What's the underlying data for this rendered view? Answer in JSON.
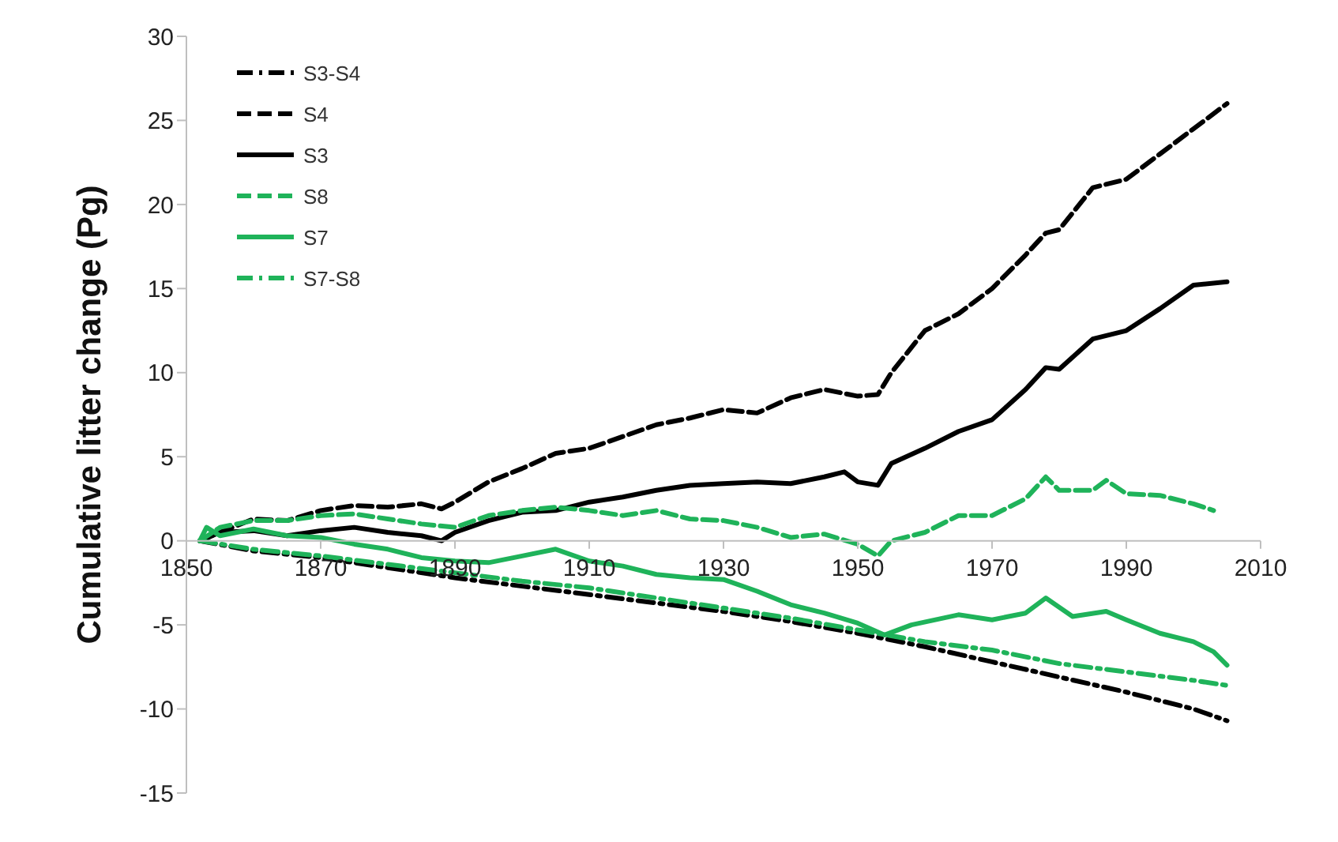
{
  "chart_data": {
    "type": "line",
    "ylabel": "Cumulative litter change (Pg)",
    "xlim": [
      1850,
      2010
    ],
    "xticks": [
      1850,
      1870,
      1890,
      1910,
      1930,
      1950,
      1970,
      1990,
      2010
    ],
    "ylim": [
      -15,
      30
    ],
    "yticks": [
      -15,
      -10,
      -5,
      0,
      5,
      10,
      15,
      20,
      25,
      30
    ],
    "grid": false,
    "legend": "top left",
    "marker": "none",
    "series": [
      {
        "name": "S3-S4",
        "color": "#000000",
        "line_style": "dashdot",
        "x": [
          1852,
          1860,
          1870,
          1880,
          1890,
          1900,
          1910,
          1920,
          1930,
          1940,
          1950,
          1960,
          1970,
          1980,
          1990,
          2000,
          2005
        ],
        "values": [
          0,
          -0.6,
          -1.0,
          -1.6,
          -2.2,
          -2.7,
          -3.2,
          -3.7,
          -4.2,
          -4.8,
          -5.5,
          -6.3,
          -7.2,
          -8.1,
          -9.0,
          -10.0,
          -10.7
        ]
      },
      {
        "name": "S4",
        "color": "#000000",
        "line_style": "dashed",
        "x": [
          1852,
          1855,
          1860,
          1865,
          1870,
          1875,
          1880,
          1885,
          1888,
          1890,
          1895,
          1900,
          1905,
          1910,
          1915,
          1920,
          1925,
          1930,
          1935,
          1940,
          1945,
          1950,
          1953,
          1955,
          1960,
          1965,
          1970,
          1975,
          1978,
          1980,
          1985,
          1990,
          1995,
          2000,
          2005
        ],
        "values": [
          0,
          0.5,
          1.3,
          1.2,
          1.8,
          2.1,
          2.0,
          2.2,
          1.9,
          2.3,
          3.5,
          4.3,
          5.2,
          5.5,
          6.2,
          6.9,
          7.3,
          7.8,
          7.6,
          8.5,
          9.0,
          8.6,
          8.7,
          10,
          12.5,
          13.5,
          15,
          17,
          18.3,
          18.5,
          21,
          21.5,
          23,
          24.5,
          26
        ]
      },
      {
        "name": "S3",
        "color": "#000000",
        "line_style": "solid",
        "x": [
          1852,
          1855,
          1860,
          1865,
          1870,
          1875,
          1880,
          1885,
          1888,
          1890,
          1895,
          1900,
          1905,
          1910,
          1915,
          1920,
          1925,
          1930,
          1935,
          1940,
          1945,
          1948,
          1950,
          1953,
          1955,
          1960,
          1965,
          1970,
          1975,
          1978,
          1980,
          1985,
          1990,
          1995,
          2000,
          2005
        ],
        "values": [
          0,
          0.5,
          0.6,
          0.3,
          0.6,
          0.8,
          0.5,
          0.3,
          0,
          0.5,
          1.2,
          1.7,
          1.8,
          2.3,
          2.6,
          3.0,
          3.3,
          3.4,
          3.5,
          3.4,
          3.8,
          4.1,
          3.5,
          3.3,
          4.6,
          5.5,
          6.5,
          7.2,
          9.0,
          10.3,
          10.2,
          12,
          12.5,
          13.8,
          15.2,
          15.4
        ]
      },
      {
        "name": "S8",
        "color": "#1fb35a",
        "line_style": "dashed",
        "x": [
          1852,
          1855,
          1860,
          1865,
          1870,
          1875,
          1880,
          1885,
          1890,
          1895,
          1900,
          1905,
          1910,
          1915,
          1920,
          1925,
          1930,
          1935,
          1940,
          1945,
          1950,
          1953,
          1955,
          1960,
          1965,
          1970,
          1975,
          1978,
          1980,
          1985,
          1987,
          1990,
          1995,
          2000,
          2003
        ],
        "values": [
          0,
          0.8,
          1.2,
          1.2,
          1.5,
          1.6,
          1.3,
          1.0,
          0.8,
          1.5,
          1.8,
          2.0,
          1.8,
          1.5,
          1.8,
          1.3,
          1.2,
          0.8,
          0.2,
          0.4,
          -0.2,
          -0.9,
          0,
          0.5,
          1.5,
          1.5,
          2.5,
          3.8,
          3.0,
          3.0,
          3.6,
          2.8,
          2.7,
          2.2,
          1.8
        ]
      },
      {
        "name": "S7",
        "color": "#1fb35a",
        "line_style": "solid",
        "x": [
          1852,
          1853,
          1855,
          1860,
          1865,
          1870,
          1875,
          1880,
          1885,
          1890,
          1895,
          1900,
          1905,
          1910,
          1915,
          1920,
          1925,
          1930,
          1935,
          1940,
          1945,
          1950,
          1954,
          1958,
          1965,
          1970,
          1975,
          1978,
          1982,
          1987,
          1990,
          1995,
          2000,
          2003,
          2005
        ],
        "values": [
          0,
          0.8,
          0.3,
          0.7,
          0.3,
          0.2,
          -0.2,
          -0.5,
          -1.0,
          -1.2,
          -1.3,
          -0.9,
          -0.5,
          -1.2,
          -1.5,
          -2.0,
          -2.2,
          -2.3,
          -3.0,
          -3.8,
          -4.3,
          -4.9,
          -5.6,
          -5.0,
          -4.4,
          -4.7,
          -4.3,
          -3.4,
          -4.5,
          -4.2,
          -4.7,
          -5.5,
          -6.0,
          -6.6,
          -7.4
        ]
      },
      {
        "name": "S7-S8",
        "color": "#1fb35a",
        "line_style": "dashdot",
        "x": [
          1852,
          1860,
          1870,
          1880,
          1890,
          1900,
          1910,
          1920,
          1930,
          1940,
          1950,
          1960,
          1970,
          1980,
          1990,
          2000,
          2005
        ],
        "values": [
          0,
          -0.5,
          -0.9,
          -1.4,
          -1.9,
          -2.4,
          -2.8,
          -3.4,
          -4.0,
          -4.6,
          -5.3,
          -6.0,
          -6.5,
          -7.3,
          -7.8,
          -8.3,
          -8.6
        ]
      }
    ]
  }
}
